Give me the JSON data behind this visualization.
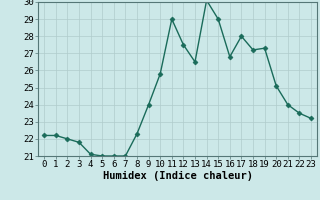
{
  "x": [
    0,
    1,
    2,
    3,
    4,
    5,
    6,
    7,
    8,
    9,
    10,
    11,
    12,
    13,
    14,
    15,
    16,
    17,
    18,
    19,
    20,
    21,
    22,
    23
  ],
  "y": [
    22.2,
    22.2,
    22.0,
    21.8,
    21.1,
    21.0,
    21.0,
    21.0,
    22.3,
    24.0,
    25.8,
    29.0,
    27.5,
    26.5,
    30.1,
    29.0,
    26.8,
    28.0,
    27.2,
    27.3,
    25.1,
    24.0,
    23.5,
    23.2
  ],
  "line_color": "#1a6b5a",
  "marker": "D",
  "marker_size": 2.5,
  "bg_color": "#cce8e8",
  "grid_color": "#b0cccc",
  "xlabel": "Humidex (Indice chaleur)",
  "ylim": [
    21,
    30
  ],
  "xlim_min": -0.5,
  "xlim_max": 23.5,
  "yticks": [
    21,
    22,
    23,
    24,
    25,
    26,
    27,
    28,
    29,
    30
  ],
  "xtick_labels": [
    "0",
    "1",
    "2",
    "3",
    "4",
    "5",
    "6",
    "7",
    "8",
    "9",
    "10",
    "11",
    "12",
    "13",
    "14",
    "15",
    "16",
    "17",
    "18",
    "19",
    "20",
    "21",
    "22",
    "23"
  ],
  "xlabel_fontsize": 7.5,
  "tick_fontsize": 6.5,
  "line_width": 1.0
}
